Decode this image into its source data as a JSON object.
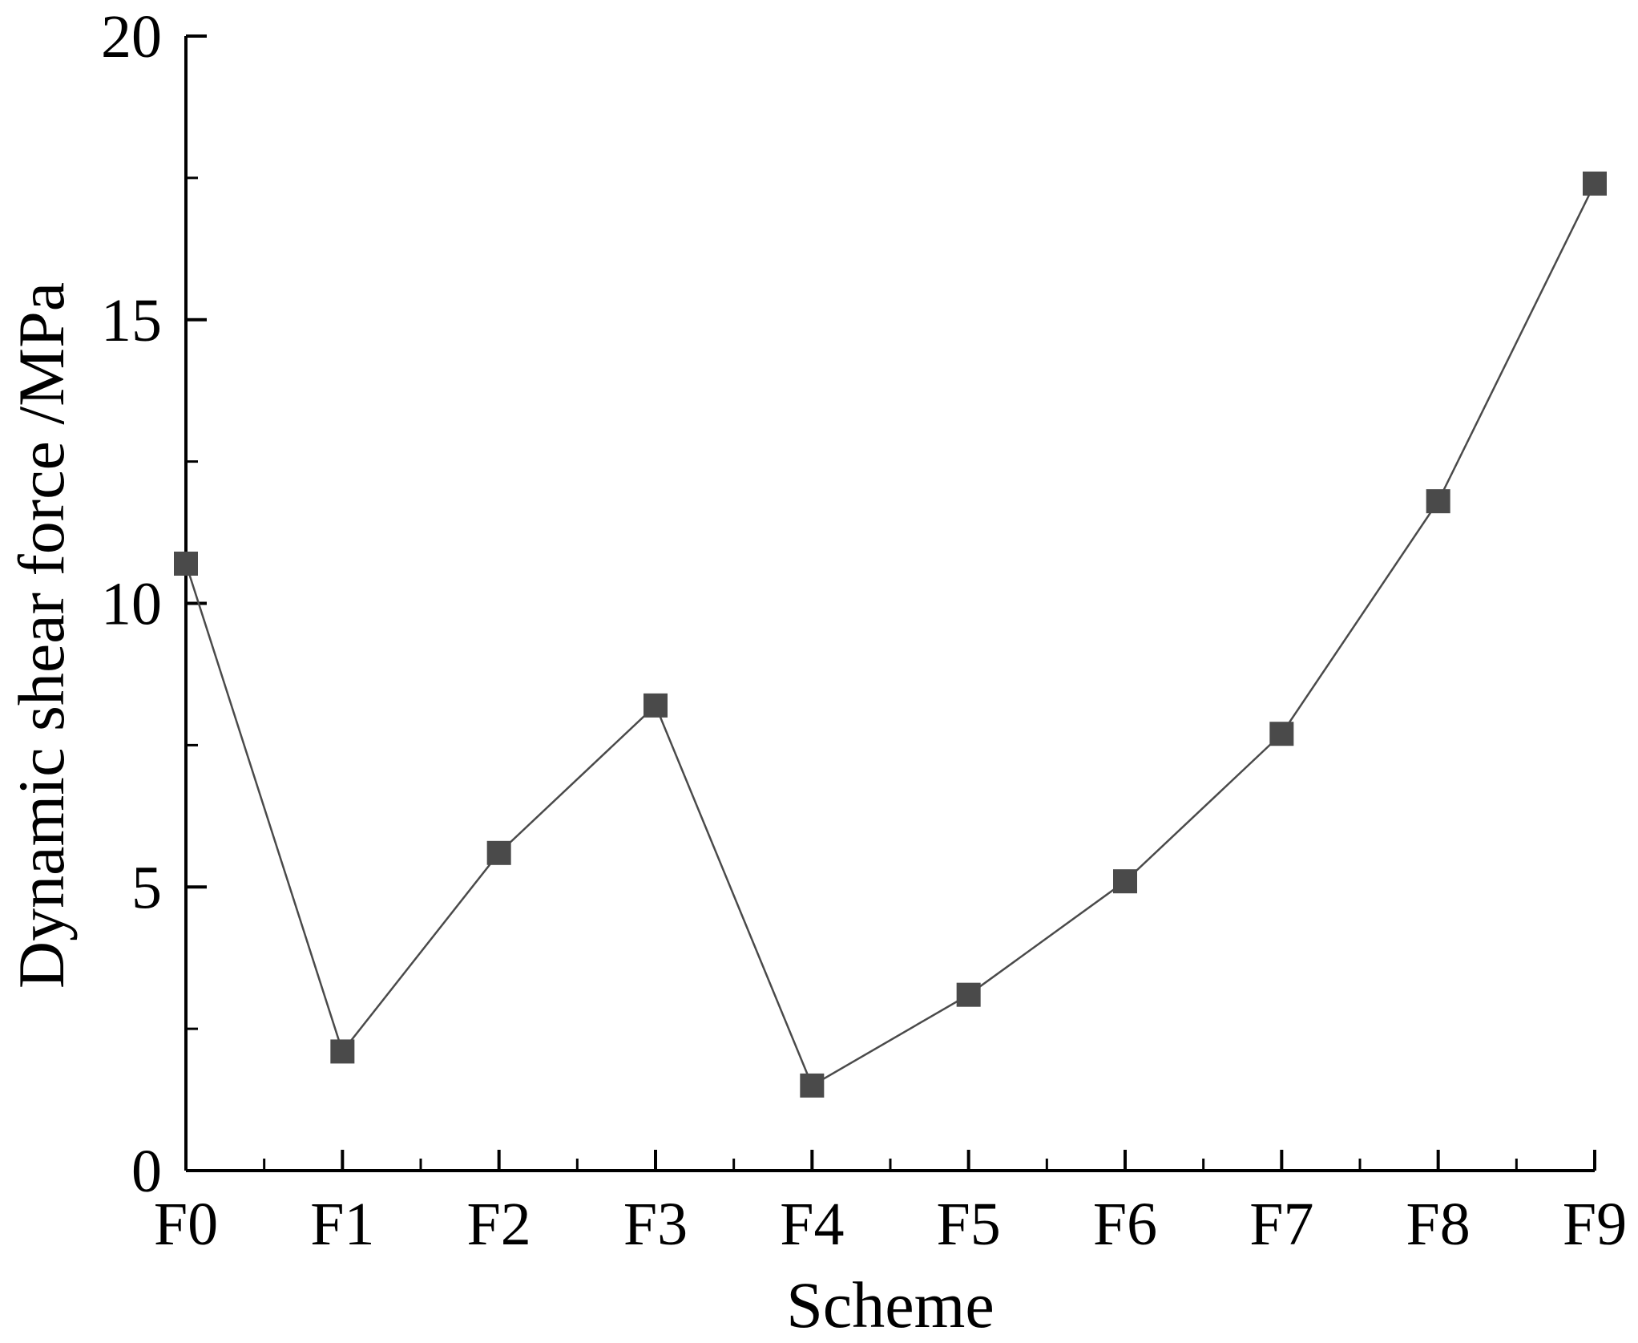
{
  "chart_data": {
    "type": "line",
    "title": "",
    "xlabel": "Scheme",
    "ylabel": "Dynamic shear force /MPa",
    "categories": [
      "F0",
      "F1",
      "F2",
      "F3",
      "F4",
      "F5",
      "F6",
      "F7",
      "F8",
      "F9"
    ],
    "ylim": [
      0,
      20
    ],
    "yticks": [
      "0",
      "5",
      "10",
      "15",
      "20"
    ],
    "grid": false,
    "legend": "none",
    "marker": "square",
    "series": [
      {
        "values": [
          10.7,
          2.1,
          5.6,
          8.2,
          1.5,
          3.1,
          5.1,
          7.7,
          11.8,
          17.4
        ],
        "color": "#4a4a4a"
      }
    ]
  }
}
